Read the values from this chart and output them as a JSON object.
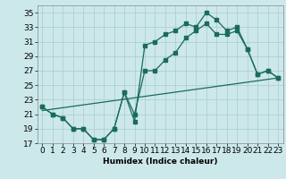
{
  "title": "",
  "xlabel": "Humidex (Indice chaleur)",
  "bg_color": "#cce8ea",
  "grid_color": "#b0d0d3",
  "line_color": "#1a6b5a",
  "xlim": [
    -0.5,
    23.5
  ],
  "ylim": [
    17,
    36
  ],
  "yticks": [
    17,
    19,
    21,
    23,
    25,
    27,
    29,
    31,
    33,
    35
  ],
  "xticks": [
    0,
    1,
    2,
    3,
    4,
    5,
    6,
    7,
    8,
    9,
    10,
    11,
    12,
    13,
    14,
    15,
    16,
    17,
    18,
    19,
    20,
    21,
    22,
    23
  ],
  "line1_x": [
    0,
    1,
    2,
    3,
    4,
    5,
    6,
    7,
    8,
    9,
    10,
    11,
    12,
    13,
    14,
    15,
    16,
    17,
    18,
    19,
    20,
    21,
    22,
    23
  ],
  "line1_y": [
    22.0,
    21.0,
    20.5,
    19.0,
    19.0,
    17.5,
    17.5,
    19.0,
    24.0,
    20.0,
    30.5,
    31.0,
    32.0,
    32.5,
    33.5,
    33.0,
    35.0,
    34.0,
    32.5,
    33.0,
    30.0,
    26.5,
    27.0,
    26.0
  ],
  "line2_x": [
    0,
    1,
    2,
    3,
    4,
    5,
    6,
    7,
    8,
    9,
    10,
    11,
    12,
    13,
    14,
    15,
    16,
    17,
    18,
    19,
    20,
    21,
    22,
    23
  ],
  "line2_y": [
    22.0,
    21.0,
    20.5,
    19.0,
    19.0,
    17.5,
    17.5,
    19.0,
    24.0,
    21.0,
    27.0,
    27.0,
    28.5,
    29.5,
    31.5,
    32.5,
    33.5,
    32.0,
    32.0,
    32.5,
    30.0,
    26.5,
    27.0,
    26.0
  ],
  "line3_x": [
    0,
    23
  ],
  "line3_y": [
    21.5,
    26.0
  ],
  "marker_size": 2.5,
  "linewidth": 0.9,
  "font_size": 6.5
}
